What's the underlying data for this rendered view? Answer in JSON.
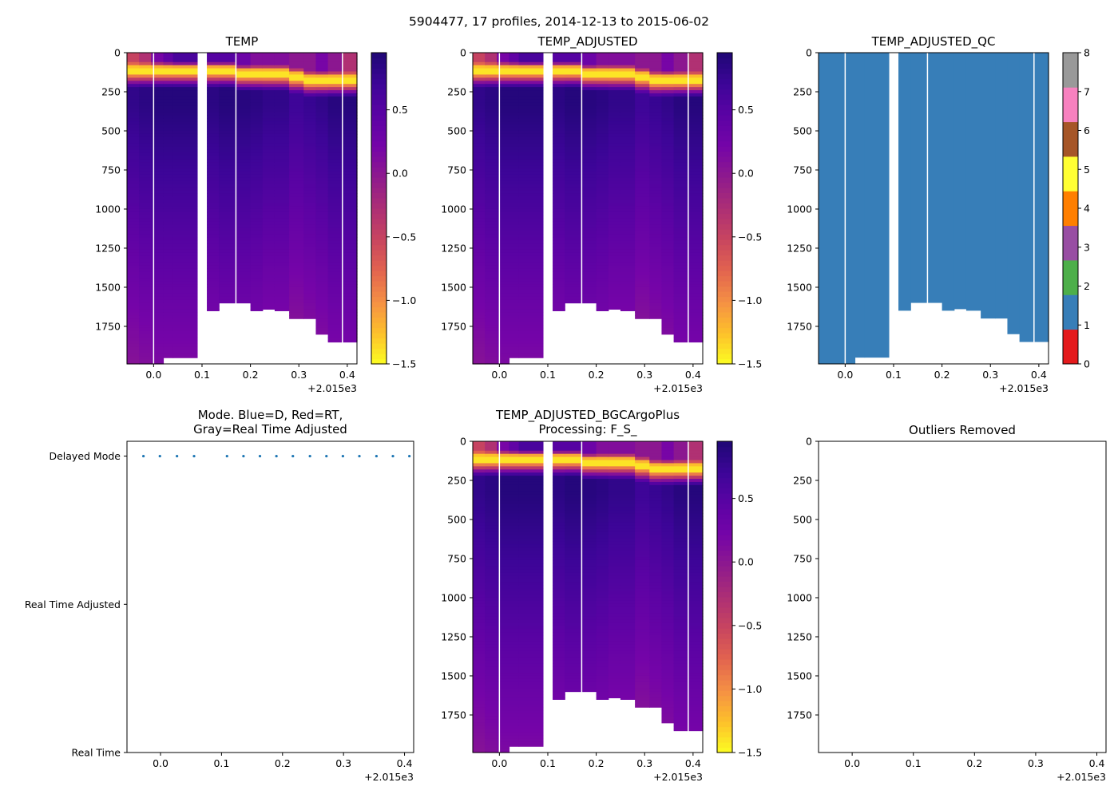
{
  "figure": {
    "suptitle": "5904477, 17 profiles, 2014-12-13 to 2015-06-02",
    "x_offset_label": "+2.015e3"
  },
  "colors": {
    "qc_blue": "#377eb8",
    "gap_white": "#ffffff",
    "mode_dot": "#1f77b4",
    "plasma_stops": [
      "#fcfd22",
      "#fdc02b",
      "#f59044",
      "#e2644f",
      "#c8455f",
      "#ad2f75",
      "#8e1a8d",
      "#7504a8",
      "#5b03a4",
      "#3d0598",
      "#1f0775"
    ],
    "qc_colormap": [
      "#e41a1c",
      "#377eb8",
      "#4daf4a",
      "#984ea3",
      "#ff7f00",
      "#ffff33",
      "#a65628",
      "#f781bf",
      "#999999"
    ]
  },
  "chart_data": [
    {
      "id": "temp",
      "type": "heatmap",
      "title": "TEMP",
      "x_ticks": [
        "0.0",
        "0.1",
        "0.2",
        "0.3",
        "0.4"
      ],
      "x_tick_values": [
        0.0,
        0.1,
        0.2,
        0.3,
        0.4
      ],
      "xlim": [
        -0.055,
        0.42
      ],
      "y_ticks": [
        "0",
        "250",
        "500",
        "750",
        "1000",
        "1250",
        "1500",
        "1750"
      ],
      "y_tick_values": [
        0,
        250,
        500,
        750,
        1000,
        1250,
        1500,
        1750
      ],
      "ylim": [
        1990,
        0
      ],
      "colorbar_ticks": [
        "0.5",
        "0.0",
        "−0.5",
        "−1.0",
        "−1.5"
      ],
      "colorbar_tick_values": [
        0.5,
        0.0,
        -0.5,
        -1.0,
        -1.5
      ],
      "color_range": [
        -1.5,
        0.95
      ],
      "profile_edges": [
        -0.055,
        -0.03,
        -0.005,
        0.02,
        0.04,
        0.09,
        0.11,
        0.135,
        0.17,
        0.2,
        0.225,
        0.25,
        0.28,
        0.31,
        0.335,
        0.36,
        0.39,
        0.42
      ],
      "profile_max_depth": [
        1990,
        1990,
        1990,
        1950,
        1950,
        0,
        1650,
        1600,
        1600,
        1650,
        1640,
        1650,
        1700,
        1700,
        1800,
        1850,
        1850
      ],
      "surface_temp": [
        -0.5,
        -0.3,
        0.2,
        0.4,
        0.6,
        0,
        0.5,
        0.5,
        0.3,
        0.1,
        0.1,
        0.1,
        0.0,
        0.0,
        0.2,
        0.0,
        -0.3
      ],
      "mixed_layer_depth": [
        60,
        60,
        60,
        60,
        60,
        0,
        60,
        60,
        80,
        80,
        80,
        80,
        100,
        120,
        120,
        120,
        120
      ],
      "max_temp": [
        0.8,
        0.85,
        0.9,
        0.9,
        0.9,
        0,
        0.85,
        0.9,
        0.88,
        0.85,
        0.8,
        0.8,
        0.7,
        0.75,
        0.8,
        0.88,
        0.9
      ],
      "thermocline_temp": -1.4
    },
    {
      "id": "temp_adjusted",
      "type": "heatmap",
      "title": "TEMP_ADJUSTED",
      "x_ticks": [
        "0.0",
        "0.1",
        "0.2",
        "0.3",
        "0.4"
      ],
      "x_tick_values": [
        0.0,
        0.1,
        0.2,
        0.3,
        0.4
      ],
      "xlim": [
        -0.055,
        0.42
      ],
      "y_ticks": [
        "0",
        "250",
        "500",
        "750",
        "1000",
        "1250",
        "1500",
        "1750"
      ],
      "y_tick_values": [
        0,
        250,
        500,
        750,
        1000,
        1250,
        1500,
        1750
      ],
      "ylim": [
        1990,
        0
      ],
      "colorbar_ticks": [
        "0.5",
        "0.0",
        "−0.5",
        "−1.0",
        "−1.5"
      ],
      "colorbar_tick_values": [
        0.5,
        0.0,
        -0.5,
        -1.0,
        -1.5
      ],
      "color_range": [
        -1.5,
        0.95
      ]
    },
    {
      "id": "temp_adjusted_qc",
      "type": "heatmap",
      "title": "TEMP_ADJUSTED_QC",
      "x_ticks": [
        "0.0",
        "0.1",
        "0.2",
        "0.3",
        "0.4"
      ],
      "x_tick_values": [
        0.0,
        0.1,
        0.2,
        0.3,
        0.4
      ],
      "xlim": [
        -0.055,
        0.42
      ],
      "y_ticks": [
        "0",
        "250",
        "500",
        "750",
        "1000",
        "1250",
        "1500",
        "1750"
      ],
      "y_tick_values": [
        0,
        250,
        500,
        750,
        1000,
        1250,
        1500,
        1750
      ],
      "ylim": [
        1990,
        0
      ],
      "qc_value": 1,
      "colorbar_ticks": [
        "8",
        "7",
        "6",
        "5",
        "4",
        "3",
        "2",
        "1",
        "0"
      ],
      "colorbar_tick_values": [
        8,
        7,
        6,
        5,
        4,
        3,
        2,
        1,
        0
      ],
      "color_range": [
        0,
        8
      ]
    },
    {
      "id": "mode",
      "type": "scatter",
      "title_lines": [
        "Mode. Blue=D, Red=RT,",
        "Gray=Real Time Adjusted"
      ],
      "x_ticks": [
        "0.0",
        "0.1",
        "0.2",
        "0.3",
        "0.4"
      ],
      "x_tick_values": [
        0.0,
        0.1,
        0.2,
        0.3,
        0.4
      ],
      "xlim": [
        -0.055,
        0.415
      ],
      "y_ticks": [
        "Delayed Mode",
        "Real Time Adjusted",
        "Real Time"
      ],
      "y_tick_values": [
        2,
        1,
        0
      ],
      "ylim": [
        0,
        2.1
      ],
      "x": [
        -0.028,
        -0.001,
        0.027,
        0.055,
        0.109,
        0.136,
        0.163,
        0.19,
        0.217,
        0.245,
        0.272,
        0.299,
        0.326,
        0.354,
        0.381,
        0.408
      ],
      "y": [
        2,
        2,
        2,
        2,
        2,
        2,
        2,
        2,
        2,
        2,
        2,
        2,
        2,
        2,
        2,
        2
      ]
    },
    {
      "id": "bgc",
      "type": "heatmap",
      "title_lines": [
        "TEMP_ADJUSTED_BGCArgoPlus",
        "Processing: F_S_"
      ],
      "x_ticks": [
        "0.0",
        "0.1",
        "0.2",
        "0.3",
        "0.4"
      ],
      "x_tick_values": [
        0.0,
        0.1,
        0.2,
        0.3,
        0.4
      ],
      "xlim": [
        -0.055,
        0.42
      ],
      "y_ticks": [
        "0",
        "250",
        "500",
        "750",
        "1000",
        "1250",
        "1500",
        "1750"
      ],
      "y_tick_values": [
        0,
        250,
        500,
        750,
        1000,
        1250,
        1500,
        1750
      ],
      "ylim": [
        1990,
        0
      ],
      "colorbar_ticks": [
        "0.5",
        "0.0",
        "−0.5",
        "−1.0",
        "−1.5"
      ],
      "colorbar_tick_values": [
        0.5,
        0.0,
        -0.5,
        -1.0,
        -1.5
      ],
      "color_range": [
        -1.5,
        0.95
      ]
    },
    {
      "id": "outliers",
      "type": "scatter",
      "title": "Outliers Removed",
      "x_ticks": [
        "0.0",
        "0.1",
        "0.2",
        "0.3",
        "0.4"
      ],
      "x_tick_values": [
        0.0,
        0.1,
        0.2,
        0.3,
        0.4
      ],
      "xlim": [
        -0.055,
        0.415
      ],
      "y_ticks": [
        "0",
        "250",
        "500",
        "750",
        "1000",
        "1250",
        "1500",
        "1750"
      ],
      "y_tick_values": [
        0,
        250,
        500,
        750,
        1000,
        1250,
        1500,
        1750
      ],
      "ylim": [
        1990,
        0
      ],
      "x": [],
      "y": []
    }
  ]
}
